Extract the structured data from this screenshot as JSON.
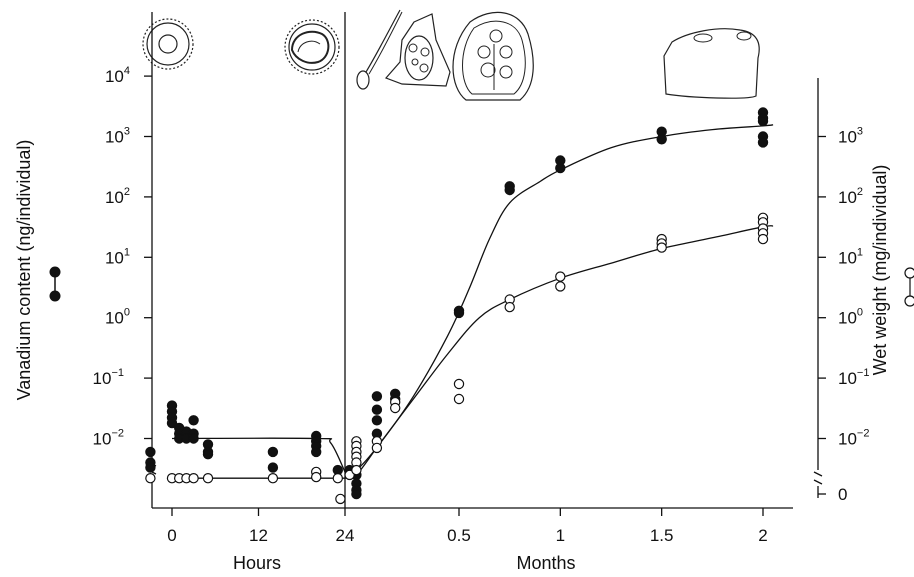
{
  "chart_data": {
    "type": "scatter",
    "title": "",
    "left_axis": {
      "label": "Vanadium content  (ng/individual)",
      "scale": "log",
      "ticks": [
        {
          "base": "10",
          "exp": "4",
          "value": 10000
        },
        {
          "base": "10",
          "exp": "3",
          "value": 1000
        },
        {
          "base": "10",
          "exp": "2",
          "value": 100
        },
        {
          "base": "10",
          "exp": "1",
          "value": 10
        },
        {
          "base": "10",
          "exp": "0",
          "value": 1
        },
        {
          "base": "10",
          "exp": "−1",
          "value": 0.1
        },
        {
          "base": "10",
          "exp": "−2",
          "value": 0.01
        }
      ],
      "ylim": [
        0.001,
        100000
      ]
    },
    "right_axis": {
      "label": "Wet weight  (mg/individual)",
      "scale": "log",
      "ticks": [
        {
          "base": "10",
          "exp": "3",
          "value": 1000
        },
        {
          "base": "10",
          "exp": "2",
          "value": 100
        },
        {
          "base": "10",
          "exp": "1",
          "value": 10
        },
        {
          "base": "10",
          "exp": "0",
          "value": 1
        },
        {
          "base": "10",
          "exp": "−1",
          "value": 0.1
        },
        {
          "base": "10",
          "exp": "−2",
          "value": 0.01
        },
        {
          "base": "",
          "exp": "",
          "label": "0",
          "value": 0
        }
      ]
    },
    "x_axis": {
      "segments": [
        {
          "label": "Hours",
          "ticks": [
            "0",
            "12",
            "24"
          ],
          "range": [
            -4,
            24
          ]
        },
        {
          "label": "Months",
          "ticks": [
            "0.5",
            "1",
            "1.5",
            "2"
          ],
          "range": [
            0,
            2.15
          ]
        }
      ],
      "divider": "24 h"
    },
    "legend": [
      {
        "marker": "filled",
        "series": "vanadium"
      },
      {
        "marker": "open",
        "series": "wet_weight"
      }
    ],
    "series": [
      {
        "key": "vanadium",
        "marker": "filled",
        "hours_points": [
          [
            -3,
            0.006
          ],
          [
            -3,
            0.004
          ],
          [
            -3,
            0.0033
          ],
          [
            0,
            0.035
          ],
          [
            0,
            0.028
          ],
          [
            0,
            0.022
          ],
          [
            0,
            0.018
          ],
          [
            1,
            0.015
          ],
          [
            1,
            0.012
          ],
          [
            1,
            0.01
          ],
          [
            2,
            0.013
          ],
          [
            2,
            0.01
          ],
          [
            3,
            0.02
          ],
          [
            3,
            0.012
          ],
          [
            3,
            0.01
          ],
          [
            5,
            0.008
          ],
          [
            5,
            0.006
          ],
          [
            5,
            0.0055
          ],
          [
            14,
            0.006
          ],
          [
            14,
            0.0033
          ],
          [
            20,
            0.011
          ],
          [
            20,
            0.009
          ],
          [
            20,
            0.0075
          ],
          [
            20,
            0.006
          ],
          [
            23,
            0.003
          ]
        ],
        "months_points": [
          [
            0.02,
            0.003
          ],
          [
            0.05,
            0.0025
          ],
          [
            0.05,
            0.0018
          ],
          [
            0.05,
            0.0014
          ],
          [
            0.05,
            0.0012
          ],
          [
            0.14,
            0.05
          ],
          [
            0.14,
            0.03
          ],
          [
            0.14,
            0.02
          ],
          [
            0.14,
            0.012
          ],
          [
            0.22,
            0.055
          ],
          [
            0.22,
            0.045
          ],
          [
            0.5,
            1.3
          ],
          [
            0.5,
            1.2
          ],
          [
            0.75,
            150
          ],
          [
            0.75,
            130
          ],
          [
            1,
            400
          ],
          [
            1,
            300
          ],
          [
            1.5,
            1200
          ],
          [
            1.5,
            900
          ],
          [
            2,
            2500
          ],
          [
            2,
            2000
          ],
          [
            2,
            1800
          ],
          [
            2,
            1000
          ],
          [
            2,
            800
          ]
        ],
        "curve_hours": [
          [
            0,
            0.01
          ],
          [
            20,
            0.01
          ],
          [
            22,
            0.0085
          ],
          [
            24,
            0.0028
          ]
        ],
        "curve_months": [
          [
            0.0,
            0.0028
          ],
          [
            0.05,
            0.003
          ],
          [
            0.15,
            0.008
          ],
          [
            0.3,
            0.05
          ],
          [
            0.45,
            0.5
          ],
          [
            0.55,
            3
          ],
          [
            0.65,
            20
          ],
          [
            0.75,
            80
          ],
          [
            0.9,
            180
          ],
          [
            1.0,
            280
          ],
          [
            1.25,
            650
          ],
          [
            1.5,
            1000
          ],
          [
            1.75,
            1300
          ],
          [
            2.0,
            1500
          ],
          [
            2.05,
            1560
          ]
        ]
      },
      {
        "key": "wet_weight",
        "marker": "open",
        "hours_points": [
          [
            -3,
            0.0022
          ],
          [
            0,
            0.0022
          ],
          [
            1,
            0.0022
          ],
          [
            2,
            0.0022
          ],
          [
            3,
            0.0022
          ],
          [
            5,
            0.0022
          ],
          [
            14,
            0.0022
          ],
          [
            20,
            0.0028
          ],
          [
            20,
            0.0023
          ],
          [
            23,
            0.0022
          ]
        ],
        "months_points": [
          [
            -0.02,
            0.001
          ],
          [
            0.02,
            0.0025
          ],
          [
            0.05,
            0.009
          ],
          [
            0.05,
            0.0075
          ],
          [
            0.05,
            0.006
          ],
          [
            0.05,
            0.005
          ],
          [
            0.05,
            0.004
          ],
          [
            0.05,
            0.003
          ],
          [
            0.14,
            0.009
          ],
          [
            0.14,
            0.007
          ],
          [
            0.22,
            0.04
          ],
          [
            0.22,
            0.032
          ],
          [
            0.5,
            0.08
          ],
          [
            0.5,
            0.045
          ],
          [
            0.75,
            2.0
          ],
          [
            0.75,
            1.5
          ],
          [
            1,
            4.8
          ],
          [
            1,
            3.3
          ],
          [
            1.5,
            20
          ],
          [
            1.5,
            17
          ],
          [
            1.5,
            14.5
          ],
          [
            2,
            45
          ],
          [
            2,
            38
          ],
          [
            2,
            30
          ],
          [
            2,
            25
          ],
          [
            2,
            20
          ]
        ],
        "curve_hours": [
          [
            0,
            0.0022
          ],
          [
            24,
            0.0022
          ]
        ],
        "curve_months": [
          [
            0.0,
            0.0022
          ],
          [
            0.05,
            0.0025
          ],
          [
            0.15,
            0.008
          ],
          [
            0.3,
            0.045
          ],
          [
            0.45,
            0.25
          ],
          [
            0.6,
            1.0
          ],
          [
            0.75,
            2.0
          ],
          [
            1.0,
            4.5
          ],
          [
            1.25,
            8
          ],
          [
            1.5,
            14
          ],
          [
            1.75,
            21
          ],
          [
            2.0,
            32
          ],
          [
            2.05,
            33
          ]
        ]
      }
    ]
  }
}
